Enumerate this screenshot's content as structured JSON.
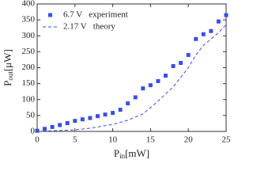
{
  "chart_data": {
    "type": "scatter",
    "x_label": {
      "main": "P",
      "sub": "in",
      "unit": "[mW]"
    },
    "y_label": {
      "main": "P",
      "sub": "out",
      "unit": "[μW]"
    },
    "xlim": [
      0,
      25
    ],
    "xticks": [
      0,
      5,
      10,
      15,
      20,
      25
    ],
    "ylim": [
      0,
      400
    ],
    "yticks": [
      0,
      50,
      100,
      150,
      200,
      250,
      300,
      350,
      400
    ],
    "legend": "top-left",
    "series": [
      {
        "name": "6.7 V   experiment",
        "color": "#3a4fe0",
        "style": "markers",
        "x": [
          0,
          1,
          2,
          3,
          4,
          5,
          6,
          7,
          8,
          9,
          10,
          11,
          12,
          13,
          14,
          15,
          16,
          17,
          18,
          19,
          20,
          21,
          22,
          23,
          24,
          25
        ],
        "values": [
          2,
          8,
          14,
          20,
          26,
          33,
          38,
          42,
          48,
          53,
          58,
          68,
          88,
          107,
          135,
          145,
          158,
          175,
          205,
          215,
          240,
          290,
          305,
          315,
          345,
          365
        ]
      },
      {
        "name": "2.17 V   theory",
        "color": "#3a4fe0",
        "style": "dashed",
        "x": [
          0,
          5,
          7,
          10,
          12,
          14,
          16,
          18,
          20,
          21,
          22,
          24,
          25
        ],
        "values": [
          0,
          5,
          10,
          22,
          35,
          55,
          95,
          140,
          200,
          240,
          270,
          310,
          335
        ]
      }
    ]
  }
}
